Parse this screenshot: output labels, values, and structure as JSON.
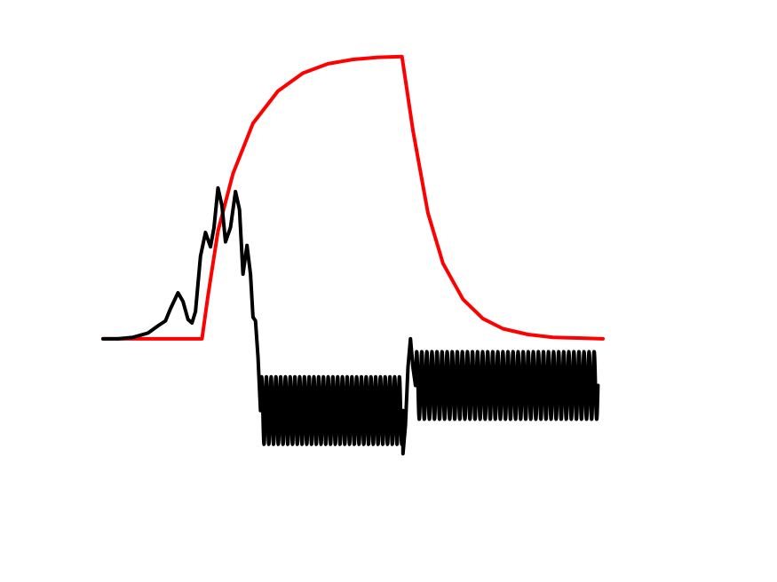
{
  "chart_data": {
    "type": "line",
    "grid": false,
    "axes_visible": false,
    "xlim": [
      0,
      10
    ],
    "ylim": [
      -2.3,
      4.1
    ],
    "series": [
      {
        "color": "#ff0000",
        "line_width": "thick",
        "points": [
          [
            0.0,
            0.0
          ],
          [
            1.98,
            0.0
          ],
          [
            2.1,
            0.6
          ],
          [
            2.3,
            1.5
          ],
          [
            2.6,
            2.3
          ],
          [
            3.0,
            3.0
          ],
          [
            3.5,
            3.45
          ],
          [
            4.0,
            3.7
          ],
          [
            4.5,
            3.83
          ],
          [
            5.0,
            3.89
          ],
          [
            5.5,
            3.92
          ],
          [
            5.98,
            3.93
          ],
          [
            6.2,
            2.9
          ],
          [
            6.5,
            1.75
          ],
          [
            6.8,
            1.05
          ],
          [
            7.2,
            0.55
          ],
          [
            7.6,
            0.28
          ],
          [
            8.0,
            0.14
          ],
          [
            8.5,
            0.06
          ],
          [
            9.0,
            0.02
          ],
          [
            9.5,
            0.01
          ],
          [
            10.0,
            0.0
          ]
        ]
      },
      {
        "color": "#000000",
        "line_width": "thick",
        "segments": [
          {
            "kind": "curve",
            "points": [
              [
                0.0,
                0.0
              ],
              [
                0.3,
                0.0
              ],
              [
                0.6,
                0.02
              ],
              [
                0.9,
                0.08
              ],
              [
                1.1,
                0.18
              ],
              [
                1.25,
                0.25
              ],
              [
                1.35,
                0.42
              ],
              [
                1.5,
                0.64
              ],
              [
                1.6,
                0.52
              ],
              [
                1.7,
                0.27
              ],
              [
                1.78,
                0.22
              ],
              [
                1.85,
                0.38
              ],
              [
                1.95,
                1.15
              ],
              [
                2.05,
                1.48
              ],
              [
                2.15,
                1.28
              ],
              [
                2.22,
                1.55
              ],
              [
                2.3,
                2.1
              ],
              [
                2.38,
                1.85
              ],
              [
                2.45,
                1.35
              ],
              [
                2.55,
                1.55
              ],
              [
                2.65,
                2.05
              ],
              [
                2.73,
                1.8
              ],
              [
                2.8,
                0.9
              ],
              [
                2.88,
                1.3
              ],
              [
                2.95,
                0.9
              ],
              [
                3.0,
                0.3
              ],
              [
                3.05,
                0.25
              ],
              [
                3.1,
                -0.25
              ],
              [
                3.15,
                -1.0
              ]
            ]
          },
          {
            "kind": "oscillation",
            "x_start": 3.15,
            "x_end": 6.0,
            "center": -1.0,
            "amplitude": 0.47,
            "cycles": 30
          },
          {
            "kind": "curve",
            "points": [
              [
                5.95,
                -1.1
              ],
              [
                6.0,
                -1.6
              ],
              [
                6.05,
                -1.2
              ],
              [
                6.1,
                -0.4
              ],
              [
                6.15,
                0.0
              ],
              [
                6.2,
                -0.4
              ],
              [
                6.25,
                -0.65
              ]
            ]
          },
          {
            "kind": "oscillation",
            "x_start": 6.25,
            "x_end": 9.9,
            "center": -0.65,
            "amplitude": 0.47,
            "cycles": 36
          }
        ]
      }
    ]
  }
}
